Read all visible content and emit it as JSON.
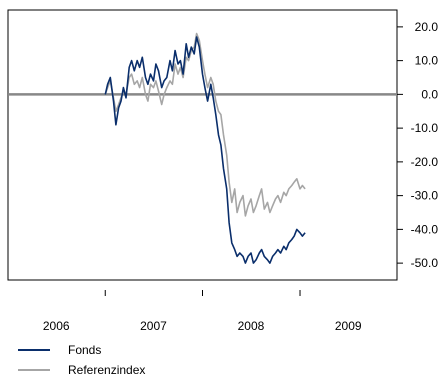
{
  "chart_data": {
    "type": "line",
    "title": "",
    "xlabel": "",
    "ylabel": "",
    "x_tick_labels": [
      "2006",
      "2007",
      "2008",
      "2009"
    ],
    "x_range": [
      "2006-01-01",
      "2009-12-31"
    ],
    "y_tick_labels": [
      "20.0",
      "10.0",
      "0.0",
      "-10.0",
      "-20.0",
      "-30.0",
      "-40.0",
      "-50.0"
    ],
    "y_ticks": [
      20,
      10,
      0,
      -10,
      -20,
      -30,
      -40,
      -50
    ],
    "ylim": [
      -55,
      25
    ],
    "y_axis_side": "right",
    "reference_line": 0,
    "grid": false,
    "legend_position": "bottom-left",
    "series": [
      {
        "name": "Fonds",
        "color": "#0a2e6b",
        "x": [
          "2007-01-01",
          "2007-01-10",
          "2007-01-20",
          "2007-02-01",
          "2007-02-10",
          "2007-02-20",
          "2007-03-01",
          "2007-03-10",
          "2007-03-20",
          "2007-04-01",
          "2007-04-10",
          "2007-04-20",
          "2007-05-01",
          "2007-05-10",
          "2007-05-20",
          "2007-06-01",
          "2007-06-10",
          "2007-06-20",
          "2007-07-01",
          "2007-07-10",
          "2007-07-20",
          "2007-08-01",
          "2007-08-10",
          "2007-08-20",
          "2007-09-01",
          "2007-09-10",
          "2007-09-20",
          "2007-10-01",
          "2007-10-10",
          "2007-10-20",
          "2007-11-01",
          "2007-11-10",
          "2007-11-20",
          "2007-12-01",
          "2007-12-10",
          "2007-12-20",
          "2008-01-01",
          "2008-01-10",
          "2008-01-20",
          "2008-02-01",
          "2008-02-10",
          "2008-02-20",
          "2008-03-01",
          "2008-03-10",
          "2008-03-20",
          "2008-04-01",
          "2008-04-10",
          "2008-04-20",
          "2008-05-01",
          "2008-05-10",
          "2008-05-20",
          "2008-06-01",
          "2008-06-10",
          "2008-06-20",
          "2008-07-01",
          "2008-07-10",
          "2008-07-20",
          "2008-08-01",
          "2008-08-10",
          "2008-08-20",
          "2008-09-01",
          "2008-09-10",
          "2008-09-20",
          "2008-10-01",
          "2008-10-10",
          "2008-10-20",
          "2008-11-01",
          "2008-11-10",
          "2008-11-20",
          "2008-12-01",
          "2008-12-10",
          "2008-12-20",
          "2009-01-01",
          "2009-01-10",
          "2009-01-20"
        ],
        "y": [
          0,
          3,
          5,
          -2,
          -9,
          -4,
          -2,
          2,
          -1,
          8,
          10,
          7,
          10,
          8,
          11,
          5,
          3,
          6,
          4,
          9,
          7,
          2,
          4,
          5,
          10,
          7,
          13,
          9,
          10,
          6,
          15,
          11,
          14,
          12,
          17,
          14,
          6,
          2,
          -2,
          3,
          -1,
          -6,
          -12,
          -15,
          -22,
          -28,
          -38,
          -44,
          -46,
          -48,
          -47,
          -48,
          -50,
          -48,
          -47,
          -50,
          -49,
          -47,
          -46,
          -48,
          -49,
          -50,
          -48,
          -47,
          -46,
          -47,
          -45,
          -46,
          -44,
          -43,
          -42,
          -40,
          -41,
          -42,
          -41
        ]
      },
      {
        "name": "Referenzindex",
        "color": "#a6a6a6",
        "x": [
          "2007-01-01",
          "2007-01-10",
          "2007-01-20",
          "2007-02-01",
          "2007-02-10",
          "2007-02-20",
          "2007-03-01",
          "2007-03-10",
          "2007-03-20",
          "2007-04-01",
          "2007-04-10",
          "2007-04-20",
          "2007-05-01",
          "2007-05-10",
          "2007-05-20",
          "2007-06-01",
          "2007-06-10",
          "2007-06-20",
          "2007-07-01",
          "2007-07-10",
          "2007-07-20",
          "2007-08-01",
          "2007-08-10",
          "2007-08-20",
          "2007-09-01",
          "2007-09-10",
          "2007-09-20",
          "2007-10-01",
          "2007-10-10",
          "2007-10-20",
          "2007-11-01",
          "2007-11-10",
          "2007-11-20",
          "2007-12-01",
          "2007-12-10",
          "2007-12-20",
          "2008-01-01",
          "2008-01-10",
          "2008-01-20",
          "2008-02-01",
          "2008-02-10",
          "2008-02-20",
          "2008-03-01",
          "2008-03-10",
          "2008-03-20",
          "2008-04-01",
          "2008-04-10",
          "2008-04-20",
          "2008-05-01",
          "2008-05-10",
          "2008-05-20",
          "2008-06-01",
          "2008-06-10",
          "2008-06-20",
          "2008-07-01",
          "2008-07-10",
          "2008-07-20",
          "2008-08-01",
          "2008-08-10",
          "2008-08-20",
          "2008-09-01",
          "2008-09-10",
          "2008-09-20",
          "2008-10-01",
          "2008-10-10",
          "2008-10-20",
          "2008-11-01",
          "2008-11-10",
          "2008-11-20",
          "2008-12-01",
          "2008-12-10",
          "2008-12-20",
          "2009-01-01",
          "2009-01-10",
          "2009-01-20"
        ],
        "y": [
          0,
          2,
          4,
          -1,
          -5,
          -3,
          -1,
          1,
          0,
          5,
          6,
          3,
          4,
          2,
          5,
          0,
          -2,
          3,
          2,
          4,
          1,
          -3,
          0,
          2,
          4,
          3,
          9,
          6,
          8,
          5,
          11,
          10,
          13,
          14,
          18,
          16,
          10,
          6,
          2,
          5,
          3,
          -2,
          -5,
          -6,
          -12,
          -18,
          -26,
          -32,
          -28,
          -35,
          -32,
          -30,
          -36,
          -33,
          -31,
          -35,
          -33,
          -30,
          -28,
          -34,
          -32,
          -35,
          -33,
          -31,
          -30,
          -32,
          -29,
          -30,
          -28,
          -27,
          -26,
          -25,
          -28,
          -27,
          -28
        ]
      }
    ]
  }
}
